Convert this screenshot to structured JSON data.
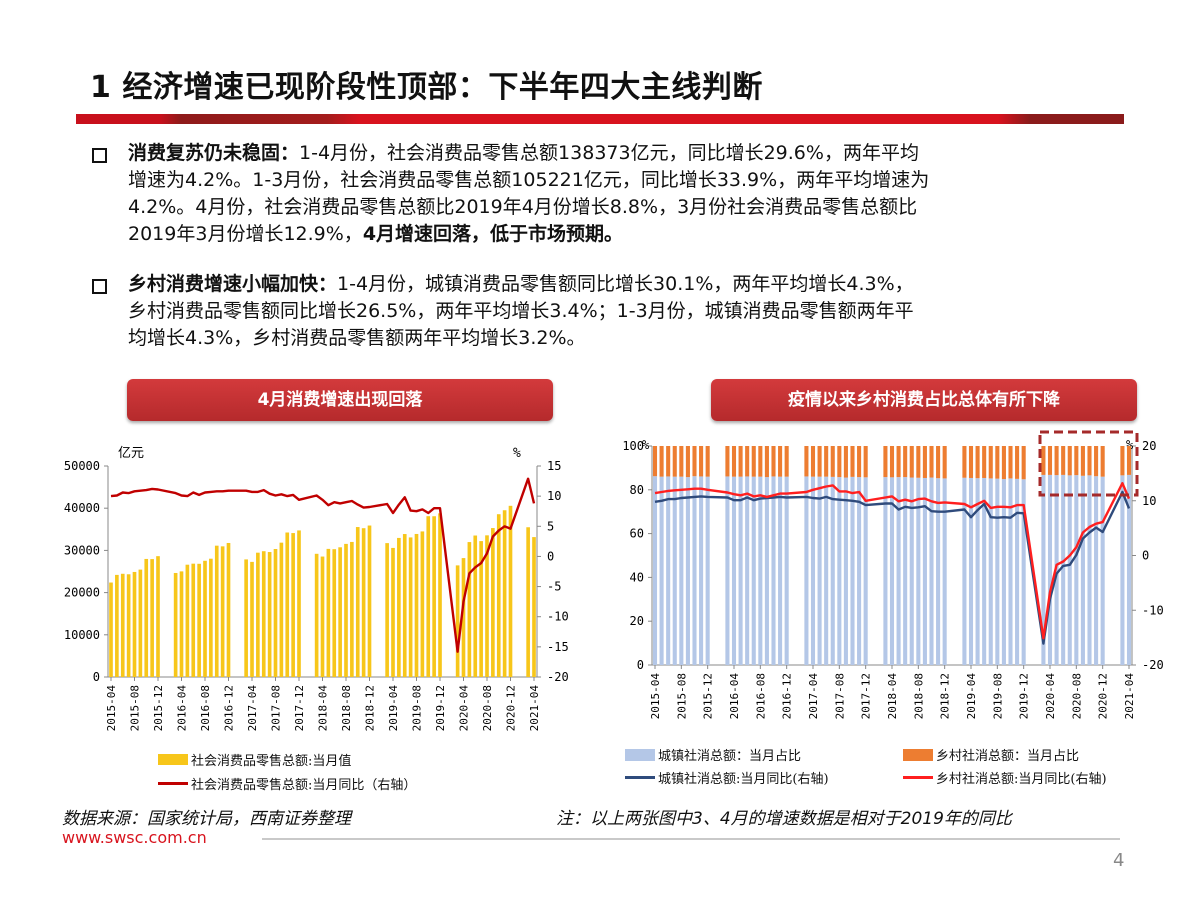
{
  "title": "1 经济增速已现阶段性顶部：下半年四大主线判断",
  "bullets": [
    {
      "lines": [
        [
          {
            "text": "消费复苏仍未稳固：",
            "bold": true
          },
          {
            "text": "1-4月份，社会消费品零售总额138373亿元，同比增长29.6%，两年平均",
            "bold": false
          }
        ],
        [
          {
            "text": "增速为4.2%。1-3月份，社会消费品零售总额105221亿元，同比增长33.9%，两年平均增速为",
            "bold": false
          }
        ],
        [
          {
            "text": "4.2%。4月份，社会消费品零售总额比2019年4月份增长8.8%，3月份社会消费品零售总额比",
            "bold": false
          }
        ],
        [
          {
            "text": "2019年3月份增长12.9%，",
            "bold": false
          },
          {
            "text": "4月增速回落，低于市场预期。",
            "bold": true
          }
        ]
      ]
    },
    {
      "lines": [
        [
          {
            "text": "乡村消费增速小幅加快：",
            "bold": true
          },
          {
            "text": "1-4月份，城镇消费品零售额同比增长30.1%，两年平均增长4.3%，",
            "bold": false
          }
        ],
        [
          {
            "text": "乡村消费品零售额同比增长26.5%，两年平均增长3.4%；1-3月份，城镇消费品零售额两年平",
            "bold": false
          }
        ],
        [
          {
            "text": "均增长4.3%，乡村消费品零售额两年平均增长3.2%。",
            "bold": false
          }
        ]
      ]
    }
  ],
  "chart_buttons": [
    "4月消费增速出现回落",
    "疫情以来乡村消费占比总体有所下降"
  ],
  "colors": {
    "gold": "#f7c61a",
    "dark_red": "#c00000",
    "urban_bar": "#b4c7e7",
    "rural_bar": "#ed7d31",
    "urban_line": "#2f4b7c",
    "rural_line": "#ff1f1f",
    "dash_box": "#a52a2a"
  },
  "chart_data": [
    {
      "type": "bar+line",
      "title": "4月消费增速出现回落",
      "months": [
        "2015-04",
        "2015-05",
        "2015-06",
        "2015-07",
        "2015-08",
        "2015-09",
        "2015-10",
        "2015-11",
        "2015-12",
        "2016-03",
        "2016-04",
        "2016-05",
        "2016-06",
        "2016-07",
        "2016-08",
        "2016-09",
        "2016-10",
        "2016-11",
        "2016-12",
        "2017-03",
        "2017-04",
        "2017-05",
        "2017-06",
        "2017-07",
        "2017-08",
        "2017-09",
        "2017-10",
        "2017-11",
        "2017-12",
        "2018-03",
        "2018-04",
        "2018-05",
        "2018-06",
        "2018-07",
        "2018-08",
        "2018-09",
        "2018-10",
        "2018-11",
        "2018-12",
        "2019-03",
        "2019-04",
        "2019-05",
        "2019-06",
        "2019-07",
        "2019-08",
        "2019-09",
        "2019-10",
        "2019-11",
        "2019-12",
        "2020-03",
        "2020-04",
        "2020-05",
        "2020-06",
        "2020-07",
        "2020-08",
        "2020-09",
        "2020-10",
        "2020-11",
        "2020-12",
        "2021-03",
        "2021-04"
      ],
      "x_ticks": [
        "2015-04",
        "2015-08",
        "2015-12",
        "2016-04",
        "2016-08",
        "2016-12",
        "2017-04",
        "2017-08",
        "2017-12",
        "2018-04",
        "2018-08",
        "2018-12",
        "2019-04",
        "2019-08",
        "2019-12",
        "2020-04",
        "2020-08",
        "2020-12",
        "2021-04"
      ],
      "left_unit": "亿元",
      "right_unit": "%",
      "ylim_left": [
        0,
        50000
      ],
      "yticks_left": [
        "50000",
        "40000",
        "30000",
        "20000",
        "10000",
        "0"
      ],
      "ylim_right": [
        -20,
        15
      ],
      "yticks_right": [
        "15",
        "10",
        "5",
        "0",
        "-5",
        "-10",
        "-15",
        "-20"
      ],
      "series": [
        {
          "name": "社会消费品零售总额:当月值",
          "axis": "left",
          "kind": "bar",
          "values": [
            22386,
            24195,
            24459,
            24343,
            24893,
            25449,
            27976,
            27937,
            28635,
            24647,
            25027,
            26611,
            26857,
            26827,
            27540,
            28033,
            31119,
            30959,
            31757,
            27864,
            27279,
            29459,
            29808,
            29610,
            30330,
            31835,
            34240,
            34108,
            34734,
            29194,
            28542,
            30359,
            30287,
            30734,
            31542,
            32005,
            35534,
            35260,
            35893,
            31726,
            30586,
            32956,
            33878,
            33073,
            33896,
            34495,
            38104,
            38094,
            38777,
            26450,
            28178,
            31973,
            33526,
            32203,
            33571,
            35295,
            38576,
            39514,
            40566,
            35484,
            33153
          ]
        },
        {
          "name": "社会消费品零售总额:当月同比（右轴）",
          "axis": "right",
          "kind": "line",
          "values": [
            10.0,
            10.1,
            10.6,
            10.5,
            10.8,
            10.9,
            11.0,
            11.2,
            11.1,
            10.5,
            10.1,
            10.0,
            10.6,
            10.2,
            10.6,
            10.7,
            10.8,
            10.8,
            10.9,
            10.9,
            10.7,
            10.7,
            11.0,
            10.4,
            10.1,
            10.3,
            10.0,
            10.2,
            9.4,
            10.1,
            9.4,
            8.5,
            9.0,
            8.8,
            9.0,
            9.2,
            8.6,
            8.1,
            8.2,
            8.7,
            7.2,
            8.6,
            9.8,
            7.6,
            7.5,
            7.8,
            7.2,
            8.0,
            8.0,
            -15.8,
            -7.5,
            -2.8,
            -1.8,
            -1.1,
            0.5,
            3.3,
            4.3,
            5.0,
            4.6,
            12.9,
            8.8
          ]
        }
      ]
    },
    {
      "type": "stacked-bar+line",
      "title": "疫情以来乡村消费占比总体有所下降",
      "months": [
        "2015-04",
        "2015-05",
        "2015-06",
        "2015-07",
        "2015-08",
        "2015-09",
        "2015-10",
        "2015-11",
        "2015-12",
        "2016-03",
        "2016-04",
        "2016-05",
        "2016-06",
        "2016-07",
        "2016-08",
        "2016-09",
        "2016-10",
        "2016-11",
        "2016-12",
        "2017-03",
        "2017-04",
        "2017-05",
        "2017-06",
        "2017-07",
        "2017-08",
        "2017-09",
        "2017-10",
        "2017-11",
        "2017-12",
        "2018-03",
        "2018-04",
        "2018-05",
        "2018-06",
        "2018-07",
        "2018-08",
        "2018-09",
        "2018-10",
        "2018-11",
        "2018-12",
        "2019-03",
        "2019-04",
        "2019-05",
        "2019-06",
        "2019-07",
        "2019-08",
        "2019-09",
        "2019-10",
        "2019-11",
        "2019-12",
        "2020-03",
        "2020-04",
        "2020-05",
        "2020-06",
        "2020-07",
        "2020-08",
        "2020-09",
        "2020-10",
        "2020-11",
        "2020-12",
        "2021-03",
        "2021-04"
      ],
      "x_ticks": [
        "2015-04",
        "2015-08",
        "2015-12",
        "2016-04",
        "2016-08",
        "2016-12",
        "2017-04",
        "2017-08",
        "2017-12",
        "2018-04",
        "2018-08",
        "2018-12",
        "2019-04",
        "2019-08",
        "2019-12",
        "2020-04",
        "2020-08",
        "2020-12",
        "2021-04"
      ],
      "left_unit": "%",
      "right_unit": "%",
      "ylim_left": [
        0,
        100
      ],
      "yticks_left": [
        "100",
        "80",
        "60",
        "40",
        "20",
        "0"
      ],
      "ylim_right": [
        -20,
        20
      ],
      "yticks_right": [
        "20",
        "10",
        "0",
        "-10",
        "-20"
      ],
      "series": [
        {
          "name": "城镇社消总额：当月占比",
          "axis": "left",
          "kind": "stack",
          "values": [
            86.2,
            86.0,
            86.1,
            86.0,
            86.0,
            85.8,
            86.2,
            86.1,
            86.0,
            86.1,
            86.0,
            86.0,
            86.1,
            86.0,
            86.0,
            85.8,
            86.1,
            86.0,
            86.0,
            86.1,
            86.0,
            86.0,
            86.0,
            85.9,
            85.8,
            85.6,
            85.9,
            85.8,
            85.7,
            85.8,
            85.7,
            85.8,
            85.8,
            85.6,
            85.5,
            85.4,
            85.6,
            85.3,
            85.2,
            85.5,
            85.4,
            85.3,
            85.4,
            85.2,
            85.1,
            84.9,
            85.2,
            85.0,
            84.8,
            86.8,
            86.8,
            86.7,
            86.8,
            86.6,
            86.7,
            86.4,
            86.6,
            86.2,
            86.0,
            86.6,
            86.8
          ]
        },
        {
          "name": "乡村社消总额：当月占比",
          "axis": "left",
          "kind": "stack",
          "values": [
            13.8,
            14.0,
            13.9,
            14.0,
            14.0,
            14.2,
            13.8,
            13.9,
            14.0,
            13.9,
            14.0,
            14.0,
            13.9,
            14.0,
            14.0,
            14.2,
            13.9,
            14.0,
            14.0,
            13.9,
            14.0,
            14.0,
            14.0,
            14.1,
            14.2,
            14.4,
            14.1,
            14.2,
            14.3,
            14.2,
            14.3,
            14.2,
            14.2,
            14.4,
            14.5,
            14.6,
            14.4,
            14.7,
            14.8,
            14.5,
            14.6,
            14.7,
            14.6,
            14.8,
            14.9,
            15.1,
            14.8,
            15.0,
            15.2,
            13.2,
            13.2,
            13.3,
            13.2,
            13.4,
            13.3,
            13.6,
            13.4,
            13.8,
            14.0,
            13.4,
            13.2
          ]
        },
        {
          "name": "城镇社消总额:当月同比(右轴)",
          "axis": "right",
          "kind": "line",
          "values": [
            9.8,
            10.0,
            10.3,
            10.3,
            10.5,
            10.6,
            10.7,
            10.8,
            10.7,
            10.6,
            10.1,
            10.1,
            10.6,
            10.1,
            10.4,
            10.5,
            10.6,
            10.7,
            10.6,
            10.7,
            10.5,
            10.4,
            10.7,
            10.3,
            10.2,
            10.1,
            10.0,
            9.8,
            9.2,
            9.5,
            9.5,
            8.4,
            8.9,
            8.7,
            8.8,
            9.0,
            8.1,
            8.0,
            8.0,
            8.4,
            7.0,
            8.3,
            9.4,
            7.0,
            6.9,
            7.0,
            6.9,
            7.8,
            7.7,
            -16.1,
            -7.9,
            -3.3,
            -1.9,
            -1.7,
            0.1,
            3.1,
            4.2,
            5.1,
            4.3,
            11.6,
            8.6
          ]
        },
        {
          "name": "乡村社消总额:当月同比(右轴)",
          "axis": "right",
          "kind": "line",
          "values": [
            11.4,
            11.6,
            11.8,
            11.9,
            12.0,
            12.1,
            12.2,
            12.2,
            12.0,
            11.5,
            11.2,
            11.0,
            11.3,
            10.8,
            11.0,
            10.7,
            11.0,
            11.3,
            11.3,
            11.6,
            12.0,
            12.3,
            12.6,
            12.8,
            11.7,
            11.7,
            11.4,
            11.6,
            10.0,
            10.6,
            10.8,
            9.9,
            10.2,
            9.9,
            10.3,
            10.4,
            9.9,
            9.6,
            9.7,
            9.4,
            8.8,
            9.4,
            10.0,
            8.7,
            8.9,
            8.9,
            8.8,
            9.2,
            9.2,
            -15.1,
            -6.7,
            -1.7,
            -1.1,
            0.0,
            1.5,
            4.2,
            5.2,
            5.8,
            6.1,
            13.2,
            10.4
          ]
        }
      ]
    }
  ],
  "footer": {
    "source": "数据来源：国家统计局，西南证券整理",
    "note": "注：以上两张图中3、4月的增速数据是相对于2019年的同比",
    "site": "www.swsc.com.cn",
    "page": "4"
  }
}
